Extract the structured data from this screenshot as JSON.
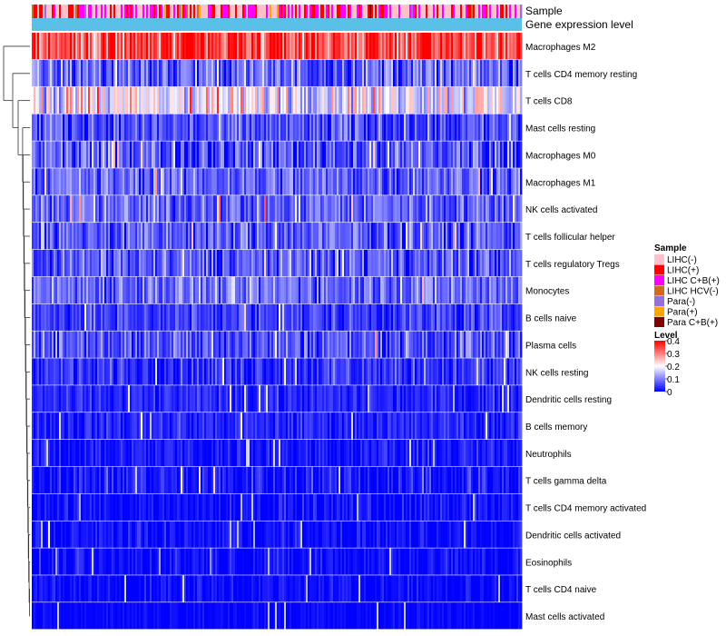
{
  "chart_data": {
    "type": "heatmap",
    "title": "",
    "annotation_tracks": [
      "Sample",
      "Gene expression level"
    ],
    "gene_expression_level_color": "#5bc0e8",
    "rows": [
      "Macrophages M2",
      "T cells CD4 memory resting",
      "T cells CD8",
      "Mast cells resting",
      "Macrophages M0",
      "Macrophages M1",
      "NK cells activated",
      "T cells follicular helper",
      "T cells regulatory  Tregs",
      "Monocytes",
      "B cells naive",
      "Plasma cells",
      "NK cells resting",
      "Dendritic cells resting",
      "B cells memory",
      "Neutrophils",
      "T cells gamma delta",
      "T cells CD4 memory activated",
      "Dendritic cells activated",
      "Eosinophils",
      "T cells CD4 naive",
      "Mast cells activated"
    ],
    "row_mean_level": [
      0.34,
      0.08,
      0.19,
      0.06,
      0.07,
      0.08,
      0.08,
      0.07,
      0.07,
      0.09,
      0.05,
      0.07,
      0.04,
      0.03,
      0.03,
      0.02,
      0.02,
      0.01,
      0.01,
      0.01,
      0.005,
      0.005
    ],
    "row_spread": [
      0.06,
      0.05,
      0.06,
      0.04,
      0.05,
      0.04,
      0.04,
      0.04,
      0.04,
      0.04,
      0.03,
      0.04,
      0.03,
      0.02,
      0.02,
      0.02,
      0.03,
      0.02,
      0.02,
      0.02,
      0.02,
      0.01
    ],
    "n_samples": 270,
    "sample_group_weights": [
      0.46,
      0.22,
      0.26,
      0.02,
      0.02,
      0.01,
      0.01
    ],
    "legend": {
      "sample_title": "Sample",
      "groups": [
        {
          "label": "LIHC(-)",
          "color": "#ffc0cb"
        },
        {
          "label": "LIHC(+)",
          "color": "#ff0000"
        },
        {
          "label": "LIHC C+B(+)",
          "color": "#ff00ff"
        },
        {
          "label": "LIHC HCV(-)",
          "color": "#d2691e"
        },
        {
          "label": "Para(-)",
          "color": "#9370db"
        },
        {
          "label": "Para(+)",
          "color": "#ffa500"
        },
        {
          "label": "Para C+B(+)",
          "color": "#800000"
        }
      ],
      "level_title": "Level",
      "level_ticks": [
        "0.4",
        "0.3",
        "0.2",
        "0.1",
        "0"
      ],
      "level_range": [
        0,
        0.4
      ],
      "level_colors": [
        "#0000ff",
        "#ffffff",
        "#ff0000"
      ]
    }
  }
}
